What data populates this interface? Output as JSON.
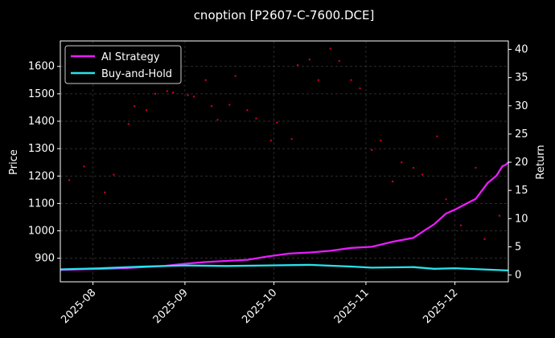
{
  "chart_data": {
    "type": "line",
    "title": "cnoption [P2607-C-7600.DCE]",
    "xlabel": "",
    "ylabel": "Price",
    "y2label": "Return",
    "x_ticks": [
      "2025-08",
      "2025-09",
      "2025-10",
      "2025-11",
      "2025-12"
    ],
    "y_ticks": [
      900,
      1000,
      1100,
      1200,
      1300,
      1400,
      1500,
      1600
    ],
    "y2_ticks": [
      0,
      5,
      10,
      15,
      20,
      25,
      30,
      35,
      40
    ],
    "xlim": [
      "2025-07-21",
      "2025-12-19"
    ],
    "ylim": [
      814,
      1693
    ],
    "y2lim": [
      -1.2,
      41.5
    ],
    "grid": true,
    "legend_position": "top-left",
    "colors": {
      "background": "#000000",
      "ai": "#e81cff",
      "bh": "#27e3ee",
      "price": "#cc0022",
      "grid": "#3a3a3a",
      "text": "#ffffff"
    },
    "series": [
      {
        "name": "AI Strategy",
        "axis": "right",
        "x": [
          "2025-07-21",
          "2025-07-28",
          "2025-08-04",
          "2025-08-11",
          "2025-08-18",
          "2025-08-25",
          "2025-09-01",
          "2025-09-08",
          "2025-09-15",
          "2025-09-22",
          "2025-09-29",
          "2025-10-06",
          "2025-10-13",
          "2025-10-20",
          "2025-10-27",
          "2025-11-03",
          "2025-11-10",
          "2025-11-17",
          "2025-11-21",
          "2025-11-24",
          "2025-11-28",
          "2025-12-01",
          "2025-12-05",
          "2025-12-08",
          "2025-12-12",
          "2025-12-15",
          "2025-12-17",
          "2025-12-18",
          "2025-12-19"
        ],
        "y": [
          0.9,
          1.0,
          1.1,
          1.2,
          1.4,
          1.6,
          2.0,
          2.3,
          2.5,
          2.7,
          3.3,
          3.8,
          4.0,
          4.3,
          4.8,
          5.0,
          5.9,
          6.6,
          8.0,
          9.0,
          10.9,
          11.6,
          12.7,
          13.5,
          16.3,
          17.6,
          19.3,
          19.5,
          20.0
        ]
      },
      {
        "name": "Buy-and-Hold",
        "axis": "right",
        "x": [
          "2025-07-21",
          "2025-08-04",
          "2025-08-18",
          "2025-09-01",
          "2025-09-15",
          "2025-09-29",
          "2025-10-13",
          "2025-10-27",
          "2025-11-03",
          "2025-11-17",
          "2025-11-24",
          "2025-12-01",
          "2025-12-10",
          "2025-12-19"
        ],
        "y": [
          1.0,
          1.2,
          1.5,
          1.7,
          1.6,
          1.7,
          1.8,
          1.5,
          1.3,
          1.4,
          1.1,
          1.2,
          1.0,
          0.8
        ]
      }
    ],
    "price_points": {
      "name": "Price",
      "axis": "left",
      "x": [
        "2025-07-24",
        "2025-07-29",
        "2025-08-05",
        "2025-08-08",
        "2025-08-13",
        "2025-08-15",
        "2025-08-19",
        "2025-08-22",
        "2025-08-26",
        "2025-08-28",
        "2025-09-02",
        "2025-09-04",
        "2025-09-08",
        "2025-09-10",
        "2025-09-12",
        "2025-09-16",
        "2025-09-18",
        "2025-09-22",
        "2025-09-25",
        "2025-09-30",
        "2025-10-02",
        "2025-10-07",
        "2025-10-09",
        "2025-10-13",
        "2025-10-16",
        "2025-10-20",
        "2025-10-23",
        "2025-10-27",
        "2025-10-30",
        "2025-11-03",
        "2025-11-06",
        "2025-11-10",
        "2025-11-13",
        "2025-11-17",
        "2025-11-20",
        "2025-11-25",
        "2025-11-28",
        "2025-12-03",
        "2025-12-08",
        "2025-12-11",
        "2025-12-16"
      ],
      "y": [
        1185,
        1235,
        1140,
        1205,
        1390,
        1455,
        1440,
        1500,
        1510,
        1505,
        1495,
        1490,
        1550,
        1455,
        1405,
        1460,
        1565,
        1440,
        1410,
        1330,
        1395,
        1335,
        1605,
        1625,
        1550,
        1665,
        1620,
        1550,
        1520,
        1295,
        1330,
        1180,
        1250,
        1230,
        1205,
        1345,
        1115,
        1020,
        1230,
        970,
        1055
      ]
    }
  }
}
